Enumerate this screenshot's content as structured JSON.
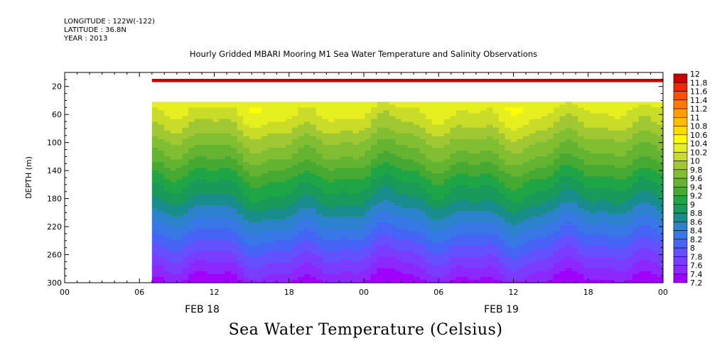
{
  "header": {
    "longitude": "LONGITUDE : 122W(-122)",
    "latitude": "LATITUDE : 36.8N",
    "year": "YEAR : 2013"
  },
  "chart_data": {
    "type": "heatmap",
    "title": "Hourly Gridded MBARI Mooring M1 Sea Water Temperature and Salinity Observations",
    "subtitle": "Sea Water Temperature (Celsius)",
    "ylabel": "DEPTH (m)",
    "xlabel": "",
    "y_reversed": true,
    "ylim": [
      300,
      0
    ],
    "y_ticks": [
      20,
      60,
      100,
      140,
      180,
      220,
      260,
      300
    ],
    "x_range_hours": [
      0,
      48
    ],
    "x_data_start_hours": 7,
    "x_ticks": [
      {
        "hour": 0,
        "label": "00"
      },
      {
        "hour": 6,
        "label": "06"
      },
      {
        "hour": 12,
        "label": "12"
      },
      {
        "hour": 18,
        "label": "18"
      },
      {
        "hour": 24,
        "label": "00"
      },
      {
        "hour": 30,
        "label": "06"
      },
      {
        "hour": 36,
        "label": "12"
      },
      {
        "hour": 42,
        "label": "18"
      },
      {
        "hour": 48,
        "label": "00"
      }
    ],
    "date_labels": [
      {
        "hour": 12,
        "label": "FEB 18"
      },
      {
        "hour": 36,
        "label": "FEB 19"
      }
    ],
    "no_data_depth_band": [
      10,
      40
    ],
    "depth_profile": [
      {
        "depth": 10,
        "temp": 11.85
      },
      {
        "depth": 40,
        "temp": 10.3
      },
      {
        "depth": 60,
        "temp": 10.2
      },
      {
        "depth": 80,
        "temp": 10.0
      },
      {
        "depth": 100,
        "temp": 9.75
      },
      {
        "depth": 120,
        "temp": 9.55
      },
      {
        "depth": 140,
        "temp": 9.3
      },
      {
        "depth": 160,
        "temp": 9.05
      },
      {
        "depth": 180,
        "temp": 8.85
      },
      {
        "depth": 200,
        "temp": 8.6
      },
      {
        "depth": 220,
        "temp": 8.35
      },
      {
        "depth": 240,
        "temp": 8.1
      },
      {
        "depth": 260,
        "temp": 7.85
      },
      {
        "depth": 280,
        "temp": 7.6
      },
      {
        "depth": 300,
        "temp": 7.35
      }
    ],
    "colorbar": {
      "levels": [
        7.2,
        7.4,
        7.6,
        7.8,
        8,
        8.2,
        8.4,
        8.6,
        8.8,
        9,
        9.2,
        9.4,
        9.6,
        9.8,
        10,
        10.2,
        10.4,
        10.6,
        10.8,
        11,
        11.2,
        11.4,
        11.6,
        11.8,
        12
      ],
      "labels": [
        "7.2",
        "7.4",
        "7.6",
        "7.8",
        "8",
        "8.2",
        "8.4",
        "8.6",
        "8.8",
        "9",
        "9.2",
        "9.4",
        "9.6",
        "9.8",
        "10",
        "10.2",
        "10.4",
        "10.6",
        "10.8",
        "11",
        "11.2",
        "11.4",
        "11.6",
        "11.8",
        "12"
      ],
      "colors": [
        "#a000ff",
        "#8c28ff",
        "#7a3cff",
        "#6450ff",
        "#4664f5",
        "#3778e6",
        "#2d82cd",
        "#198c8c",
        "#1a9a5a",
        "#1ea546",
        "#46aa32",
        "#64b432",
        "#82be32",
        "#a0c832",
        "#c8dc28",
        "#e6f01e",
        "#ffff00",
        "#ffdc00",
        "#ffbe00",
        "#ffa000",
        "#ff7800",
        "#ff5000",
        "#f02800",
        "#cc0000",
        "#a00000"
      ]
    }
  }
}
